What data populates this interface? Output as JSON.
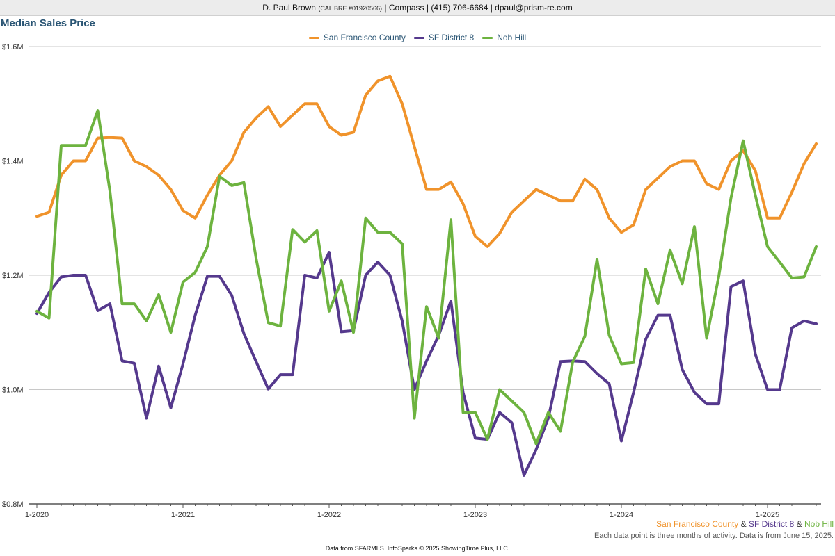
{
  "header": {
    "agent": "D. Paul Brown",
    "license": "(CAL BRE #01920566)",
    "rest": "| Compass | (415) 706-6684 | dpaul@prism-re.com"
  },
  "footer": {
    "connector": "&",
    "note": "Each data point is three months of activity. Data is from June 15, 2025.",
    "source": "Data from SFARMLS. InfoSparks © 2025 ShowingTime Plus, LLC."
  },
  "chart_data": {
    "type": "line",
    "title": "Median Sales Price",
    "legend_position": "top-center",
    "grid": true,
    "ylim": [
      800000,
      1600000
    ],
    "y_ticks": [
      800000,
      1000000,
      1200000,
      1400000,
      1600000
    ],
    "y_tick_labels": [
      "$0.8M",
      "$1.0M",
      "$1.2M",
      "$1.4M",
      "$1.6M"
    ],
    "x_tick_labels": [
      "1-2020",
      "1-2021",
      "1-2022",
      "1-2023",
      "1-2024",
      "1-2025"
    ],
    "x_tick_positions": [
      0,
      12,
      24,
      36,
      48,
      60
    ],
    "x_range": [
      0,
      64
    ],
    "x": [
      "2020-01",
      "2020-02",
      "2020-03",
      "2020-04",
      "2020-05",
      "2020-06",
      "2020-07",
      "2020-08",
      "2020-09",
      "2020-10",
      "2020-11",
      "2020-12",
      "2021-01",
      "2021-02",
      "2021-03",
      "2021-04",
      "2021-05",
      "2021-06",
      "2021-07",
      "2021-08",
      "2021-09",
      "2021-10",
      "2021-11",
      "2021-12",
      "2022-01",
      "2022-02",
      "2022-03",
      "2022-04",
      "2022-05",
      "2022-06",
      "2022-07",
      "2022-08",
      "2022-09",
      "2022-10",
      "2022-11",
      "2022-12",
      "2023-01",
      "2023-02",
      "2023-03",
      "2023-04",
      "2023-05",
      "2023-06",
      "2023-07",
      "2023-08",
      "2023-09",
      "2023-10",
      "2023-11",
      "2023-12",
      "2024-01",
      "2024-02",
      "2024-03",
      "2024-04",
      "2024-05",
      "2024-06",
      "2024-07",
      "2024-08",
      "2024-09",
      "2024-10",
      "2024-11",
      "2024-12",
      "2025-01",
      "2025-02",
      "2025-03",
      "2025-04",
      "2025-05"
    ],
    "series": [
      {
        "name": "San Francisco County",
        "color": "#f0932b",
        "values": [
          1303000,
          1310000,
          1375000,
          1400000,
          1400000,
          1440000,
          1441000,
          1440000,
          1400000,
          1390000,
          1375000,
          1350000,
          1313000,
          1300000,
          1340000,
          1375000,
          1400000,
          1450000,
          1475000,
          1495000,
          1460000,
          1480000,
          1500000,
          1500000,
          1460000,
          1445000,
          1450000,
          1515000,
          1540000,
          1548000,
          1500000,
          1425000,
          1350000,
          1350000,
          1363000,
          1325000,
          1268000,
          1250000,
          1273000,
          1310000,
          1330000,
          1350000,
          1340000,
          1330000,
          1330000,
          1368000,
          1350000,
          1300000,
          1275000,
          1288000,
          1350000,
          1370000,
          1390000,
          1400000,
          1400000,
          1360000,
          1350000,
          1400000,
          1418000,
          1383000,
          1300000,
          1300000,
          1345000,
          1395000,
          1430000
        ]
      },
      {
        "name": "SF District 8",
        "color": "#55398d",
        "values": [
          1133000,
          1170000,
          1197000,
          1200000,
          1200000,
          1138000,
          1150000,
          1050000,
          1046000,
          950000,
          1041000,
          968000,
          1045000,
          1130000,
          1198000,
          1198000,
          1165000,
          1098000,
          1049000,
          1001000,
          1026000,
          1026000,
          1200000,
          1195000,
          1240000,
          1101000,
          1103000,
          1200000,
          1223000,
          1200000,
          1120000,
          1000000,
          1050000,
          1095000,
          1155000,
          995000,
          915000,
          913000,
          960000,
          942000,
          850000,
          895000,
          950000,
          1049000,
          1050000,
          1049000,
          1028000,
          1010000,
          910000,
          995000,
          1088000,
          1130000,
          1130000,
          1035000,
          995000,
          975000,
          975000,
          1180000,
          1190000,
          1062000,
          1000000,
          1000000,
          1108000,
          1120000,
          1115000
        ]
      },
      {
        "name": "Nob Hill",
        "color": "#6db33f",
        "values": [
          1137000,
          1125000,
          1427000,
          1427000,
          1427000,
          1488000,
          1347000,
          1150000,
          1150000,
          1120000,
          1166000,
          1100000,
          1188000,
          1205000,
          1250000,
          1373000,
          1357000,
          1362000,
          1230000,
          1117000,
          1111000,
          1280000,
          1258000,
          1278000,
          1137000,
          1190000,
          1100000,
          1300000,
          1275000,
          1275000,
          1255000,
          950000,
          1145000,
          1090000,
          1297000,
          960000,
          960000,
          913000,
          1000000,
          980000,
          960000,
          905000,
          960000,
          927000,
          1048000,
          1093000,
          1228000,
          1095000,
          1045000,
          1047000,
          1211000,
          1150000,
          1244000,
          1185000,
          1285000,
          1090000,
          1198000,
          1335000,
          1435000,
          1340000,
          1250000,
          1223000,
          1195000,
          1197000,
          1250000
        ]
      }
    ]
  }
}
